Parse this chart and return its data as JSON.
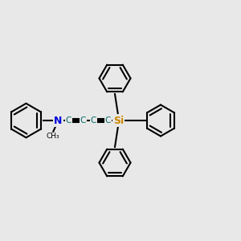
{
  "bg_color": "#e8e8e8",
  "bond_color": "#000000",
  "N_color": "#0000dd",
  "Si_color": "#cc8800",
  "C_chain_color": "#006666",
  "figsize": [
    3.0,
    3.0
  ],
  "dpi": 100,
  "xlim": [
    0,
    12
  ],
  "ylim": [
    0,
    10
  ],
  "y_center": 5.0
}
